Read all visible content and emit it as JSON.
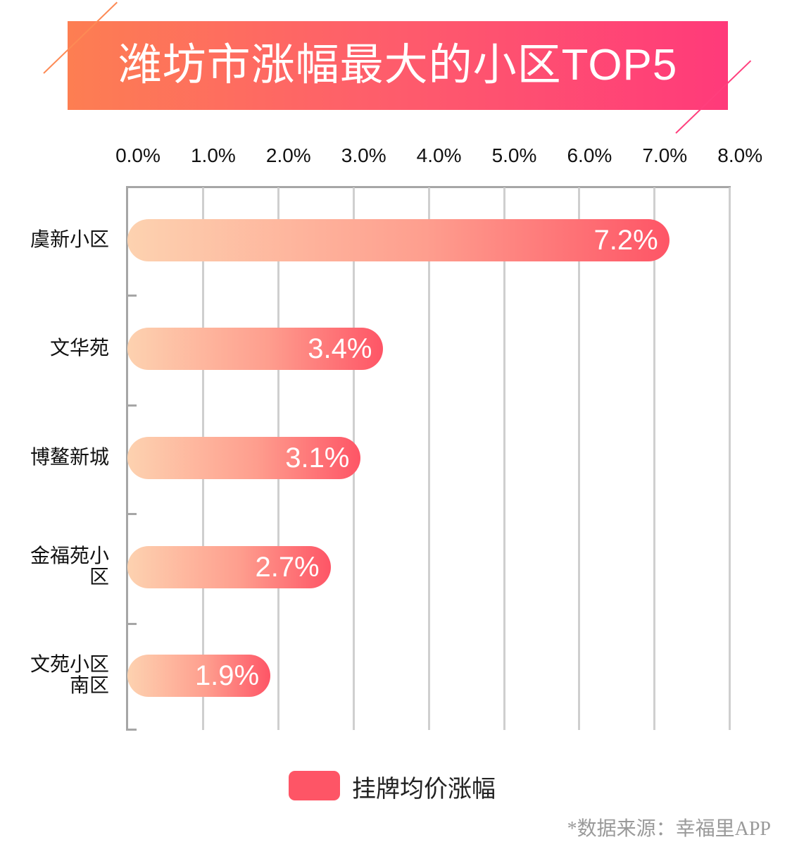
{
  "title": "潍坊市涨幅最大的小区TOP5",
  "axis": {
    "ticks": [
      "0.0%",
      "1.0%",
      "2.0%",
      "3.0%",
      "4.0%",
      "5.0%",
      "6.0%",
      "7.0%",
      "8.0%"
    ]
  },
  "bars": [
    {
      "label_lines": [
        "虞新小区"
      ],
      "value": 7.2,
      "value_label": "7.2%"
    },
    {
      "label_lines": [
        "文华苑"
      ],
      "value": 3.4,
      "value_label": "3.4%"
    },
    {
      "label_lines": [
        "博鳌新城"
      ],
      "value": 3.1,
      "value_label": "3.1%"
    },
    {
      "label_lines": [
        "金福苑小",
        "区"
      ],
      "value": 2.7,
      "value_label": "2.7%"
    },
    {
      "label_lines": [
        "文苑小区",
        "南区"
      ],
      "value": 1.9,
      "value_label": "1.9%"
    }
  ],
  "legend": {
    "label": "挂牌均价涨幅",
    "color": "#fe5566"
  },
  "source": "*数据来源：幸福里APP",
  "colors": {
    "banner_start": "#fd7e52",
    "banner_end": "#ff3a7a",
    "bar_start": "#fdd2b0",
    "bar_end": "#fe5566"
  },
  "chart_data": {
    "type": "bar",
    "orientation": "horizontal",
    "title": "潍坊市涨幅最大的小区TOP5",
    "categories": [
      "虞新小区",
      "文华苑",
      "博鳌新城",
      "金福苑小区",
      "文苑小区南区"
    ],
    "series": [
      {
        "name": "挂牌均价涨幅",
        "values": [
          7.2,
          3.4,
          3.1,
          2.7,
          1.9
        ]
      }
    ],
    "values": [
      7.2,
      3.4,
      3.1,
      2.7,
      1.9
    ],
    "value_labels": [
      "7.2%",
      "3.4%",
      "3.1%",
      "2.7%",
      "1.9%"
    ],
    "xlabel": "",
    "ylabel": "",
    "xlim": [
      0,
      8
    ],
    "x_tick_labels": [
      "0.0%",
      "1.0%",
      "2.0%",
      "3.0%",
      "4.0%",
      "5.0%",
      "6.0%",
      "7.0%",
      "8.0%"
    ],
    "x_axis_position": "top",
    "grid": true,
    "legend_position": "bottom",
    "annotation": "*数据来源：幸福里APP"
  }
}
